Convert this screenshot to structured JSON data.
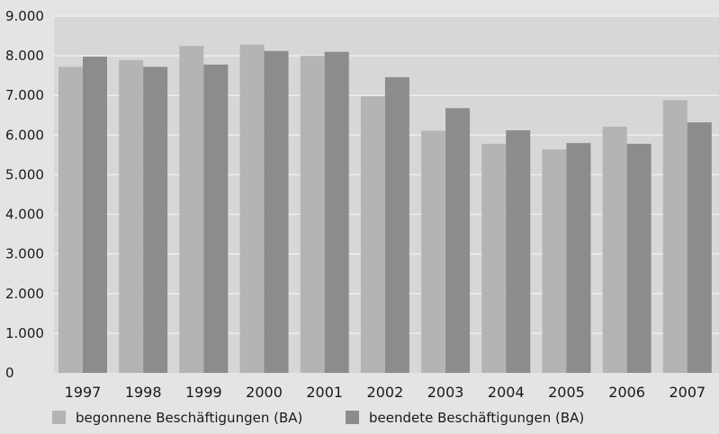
{
  "chart_data": {
    "type": "bar",
    "categories": [
      "1997",
      "1998",
      "1999",
      "2000",
      "2001",
      "2002",
      "2003",
      "2004",
      "2005",
      "2006",
      "2007"
    ],
    "series": [
      {
        "name": "begonnene Beschäftigungen (BA)",
        "color": "#b4b4b4",
        "values": [
          7720,
          7890,
          8250,
          8280,
          8000,
          6980,
          6110,
          5780,
          5640,
          6210,
          6880
        ]
      },
      {
        "name": "beendete Beschäftigungen (BA)",
        "color": "#8c8c8c",
        "values": [
          7980,
          7720,
          7780,
          8120,
          8100,
          7460,
          6680,
          6120,
          5800,
          5780,
          6320
        ]
      }
    ],
    "title": "",
    "xlabel": "",
    "ylabel": "",
    "ylim": [
      0,
      9000
    ],
    "yticks": [
      0,
      1000,
      2000,
      3000,
      4000,
      5000,
      6000,
      7000,
      8000,
      9000
    ],
    "ytick_labels": [
      "0",
      "1.000",
      "2.000",
      "3.000",
      "4.000",
      "5.000",
      "6.000",
      "7.000",
      "8.000",
      "9.000"
    ],
    "grid": true,
    "legend_position": "bottom-left",
    "plot_background": "#d7d7d7",
    "grid_color": "#eeeeee"
  }
}
